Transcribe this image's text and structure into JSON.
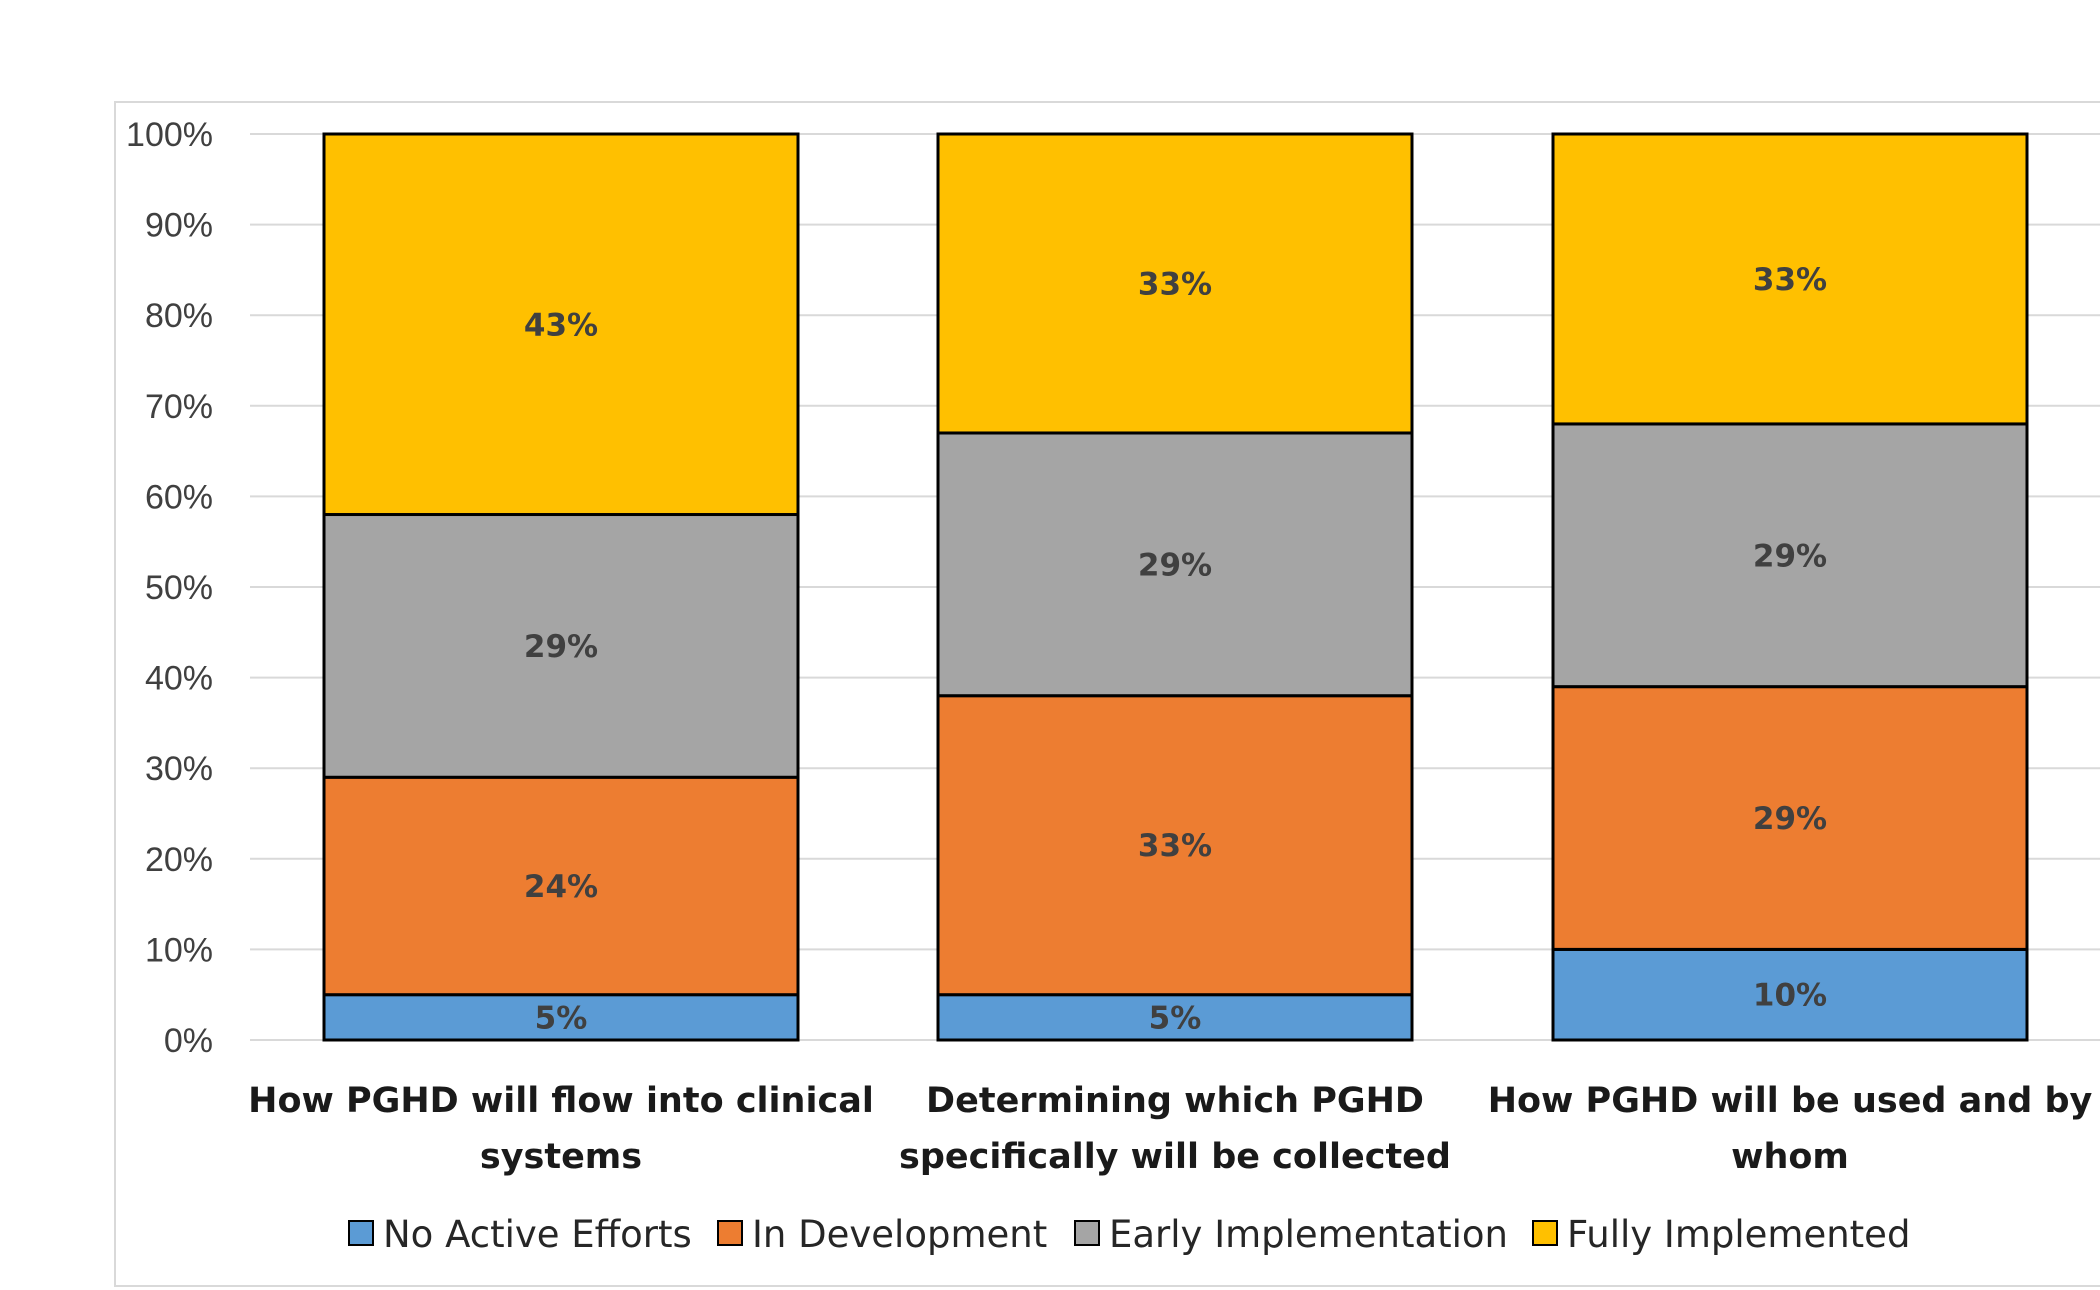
{
  "chart_data": {
    "type": "bar",
    "stacked": true,
    "title": "",
    "xlabel": "",
    "ylabel": "",
    "ylim": [
      0,
      100
    ],
    "ytick_step": 10,
    "ytick_suffix": "%",
    "grid": true,
    "legend_position": "bottom",
    "categories": [
      [
        "How PGHD will flow into clinical",
        "systems"
      ],
      [
        "Determining which PGHD",
        "specifically will be collected"
      ],
      [
        "How PGHD will be used and by",
        "whom"
      ]
    ],
    "series": [
      {
        "name": "No Active Efforts",
        "color": "#5b9bd5",
        "values": [
          5,
          5,
          10
        ]
      },
      {
        "name": "In Development",
        "color": "#ed7d31",
        "values": [
          24,
          33,
          29
        ]
      },
      {
        "name": "Early Implementation",
        "color": "#a5a5a5",
        "values": [
          29,
          29,
          29
        ]
      },
      {
        "name": "Fully Implemented",
        "color": "#ffc000",
        "values": [
          43,
          33,
          33
        ]
      }
    ],
    "stack_boundaries": [
      [
        5,
        29,
        58,
        100
      ],
      [
        5,
        38,
        67,
        100
      ],
      [
        10,
        39,
        68,
        100
      ]
    ]
  }
}
